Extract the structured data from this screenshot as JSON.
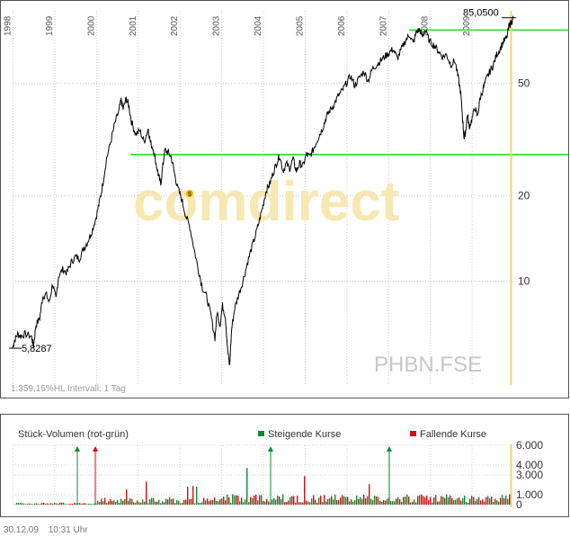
{
  "chart_data": [
    {
      "type": "line",
      "scale": "log",
      "years": [
        "1998",
        "1999",
        "2000",
        "2001",
        "2002",
        "2003",
        "2004",
        "2005",
        "2006",
        "2007",
        "2008",
        "2009"
      ],
      "y_ticks": [
        10,
        20,
        50
      ],
      "y_tick_labels": [
        "10",
        "20",
        "50"
      ],
      "ylim": [
        4.3,
        90
      ],
      "grid": true,
      "start_label": "5,8287",
      "last_label": "85,0500",
      "info_text": "1.359,15%HL  Intervall: 1 Tag",
      "watermark": "comdirect",
      "symbol": "PHBN.FSE",
      "dividend_marker": "$",
      "horizontal_lines": [
        {
          "value": 28,
          "color": "#22dd22"
        },
        {
          "value": 77,
          "color": "#22dd22"
        }
      ],
      "series": [
        {
          "color": "#000000",
          "points": [
            [
              1998.0,
              5.8
            ],
            [
              1998.05,
              6.2
            ],
            [
              1998.12,
              6.5
            ],
            [
              1998.2,
              6.4
            ],
            [
              1998.3,
              6.5
            ],
            [
              1998.45,
              6.4
            ],
            [
              1998.5,
              5.9
            ],
            [
              1998.56,
              7.0
            ],
            [
              1998.65,
              7.4
            ],
            [
              1998.72,
              8.8
            ],
            [
              1998.8,
              9.0
            ],
            [
              1998.88,
              8.4
            ],
            [
              1998.96,
              9.8
            ],
            [
              1999.04,
              8.6
            ],
            [
              1999.1,
              10.4
            ],
            [
              1999.2,
              11.0
            ],
            [
              1999.3,
              10.7
            ],
            [
              1999.4,
              11.6
            ],
            [
              1999.5,
              12.2
            ],
            [
              1999.6,
              12.0
            ],
            [
              1999.7,
              13.0
            ],
            [
              1999.8,
              13.8
            ],
            [
              1999.9,
              15.0
            ],
            [
              2000.0,
              16.8
            ],
            [
              2000.08,
              19.0
            ],
            [
              2000.15,
              21.5
            ],
            [
              2000.25,
              27.0
            ],
            [
              2000.35,
              31.0
            ],
            [
              2000.45,
              36.0
            ],
            [
              2000.55,
              40.0
            ],
            [
              2000.6,
              43.5
            ],
            [
              2000.65,
              40.5
            ],
            [
              2000.72,
              44.0
            ],
            [
              2000.78,
              42.0
            ],
            [
              2000.85,
              36.5
            ],
            [
              2000.95,
              33.0
            ],
            [
              2001.05,
              34.0
            ],
            [
              2001.15,
              31.0
            ],
            [
              2001.25,
              34.5
            ],
            [
              2001.3,
              31.0
            ],
            [
              2001.38,
              29.0
            ],
            [
              2001.45,
              25.5
            ],
            [
              2001.5,
              23.5
            ],
            [
              2001.55,
              22.0
            ],
            [
              2001.6,
              25.5
            ],
            [
              2001.65,
              29.0
            ],
            [
              2001.72,
              28.5
            ],
            [
              2001.8,
              27.5
            ],
            [
              2001.88,
              24.0
            ],
            [
              2001.95,
              21.5
            ],
            [
              2002.05,
              19.5
            ],
            [
              2002.15,
              17.0
            ],
            [
              2002.25,
              15.5
            ],
            [
              2002.35,
              13.0
            ],
            [
              2002.45,
              11.0
            ],
            [
              2002.55,
              9.5
            ],
            [
              2002.65,
              8.8
            ],
            [
              2002.75,
              7.6
            ],
            [
              2002.85,
              6.3
            ],
            [
              2002.9,
              7.8
            ],
            [
              2002.97,
              7.0
            ],
            [
              2003.03,
              8.2
            ],
            [
              2003.1,
              7.5
            ],
            [
              2003.15,
              5.8
            ],
            [
              2003.2,
              5.0
            ],
            [
              2003.25,
              6.8
            ],
            [
              2003.32,
              8.0
            ],
            [
              2003.42,
              9.0
            ],
            [
              2003.52,
              10.0
            ],
            [
              2003.62,
              11.5
            ],
            [
              2003.72,
              13.0
            ],
            [
              2003.82,
              14.5
            ],
            [
              2003.92,
              16.5
            ],
            [
              2004.0,
              18.5
            ],
            [
              2004.08,
              21.0
            ],
            [
              2004.16,
              22.0
            ],
            [
              2004.24,
              24.0
            ],
            [
              2004.32,
              26.0
            ],
            [
              2004.4,
              27.8
            ],
            [
              2004.48,
              24.5
            ],
            [
              2004.56,
              26.0
            ],
            [
              2004.64,
              25.0
            ],
            [
              2004.72,
              27.0
            ],
            [
              2004.8,
              24.5
            ],
            [
              2004.88,
              26.0
            ],
            [
              2004.96,
              25.5
            ],
            [
              2005.04,
              28.0
            ],
            [
              2005.12,
              27.5
            ],
            [
              2005.2,
              29.0
            ],
            [
              2005.28,
              31.0
            ],
            [
              2005.36,
              33.0
            ],
            [
              2005.44,
              35.0
            ],
            [
              2005.52,
              38.0
            ],
            [
              2005.6,
              40.0
            ],
            [
              2005.7,
              42.0
            ],
            [
              2005.8,
              45.0
            ],
            [
              2005.9,
              47.0
            ],
            [
              2006.0,
              50.0
            ],
            [
              2006.1,
              53.0
            ],
            [
              2006.2,
              49.0
            ],
            [
              2006.3,
              52.0
            ],
            [
              2006.42,
              55.0
            ],
            [
              2006.52,
              51.0
            ],
            [
              2006.62,
              56.0
            ],
            [
              2006.72,
              58.0
            ],
            [
              2006.82,
              60.0
            ],
            [
              2006.92,
              62.0
            ],
            [
              2007.02,
              64.0
            ],
            [
              2007.12,
              66.0
            ],
            [
              2007.22,
              61.0
            ],
            [
              2007.32,
              66.0
            ],
            [
              2007.42,
              71.0
            ],
            [
              2007.52,
              74.0
            ],
            [
              2007.6,
              69.0
            ],
            [
              2007.68,
              76.0
            ],
            [
              2007.76,
              77.0
            ],
            [
              2007.82,
              73.0
            ],
            [
              2007.88,
              77.0
            ],
            [
              2008.0,
              70.0
            ],
            [
              2008.1,
              68.0
            ],
            [
              2008.2,
              65.0
            ],
            [
              2008.3,
              62.0
            ],
            [
              2008.4,
              63.0
            ],
            [
              2008.5,
              58.0
            ],
            [
              2008.6,
              60.0
            ],
            [
              2008.68,
              52.0
            ],
            [
              2008.74,
              46.0
            ],
            [
              2008.78,
              38.0
            ],
            [
              2008.82,
              32.0
            ],
            [
              2008.86,
              34.0
            ],
            [
              2008.9,
              39.0
            ],
            [
              2008.94,
              35.0
            ],
            [
              2009.0,
              37.0
            ],
            [
              2009.08,
              41.0
            ],
            [
              2009.14,
              38.0
            ],
            [
              2009.2,
              44.0
            ],
            [
              2009.28,
              48.0
            ],
            [
              2009.36,
              52.0
            ],
            [
              2009.44,
              55.0
            ],
            [
              2009.52,
              58.0
            ],
            [
              2009.6,
              63.0
            ],
            [
              2009.68,
              66.0
            ],
            [
              2009.76,
              70.0
            ],
            [
              2009.84,
              72.0
            ],
            [
              2009.9,
              80.0
            ],
            [
              2009.95,
              82.0
            ],
            [
              2010.0,
              85.05
            ]
          ]
        }
      ]
    },
    {
      "type": "bar",
      "title": "Stück-Volumen (rot-grün)",
      "legend": [
        {
          "name": "Steigende Kurse",
          "color": "#118833"
        },
        {
          "name": "Fallende Kurse",
          "color": "#cc1111"
        }
      ],
      "y_ticks": [
        0,
        1000,
        3000,
        4000,
        6000
      ],
      "y_tick_labels": [
        "0",
        "1.000",
        "3.000",
        "4.000",
        "6.000"
      ],
      "ylim": [
        0,
        6000
      ]
    }
  ],
  "footer": {
    "date": "30.12.09",
    "time": "10:31 Uhr"
  }
}
